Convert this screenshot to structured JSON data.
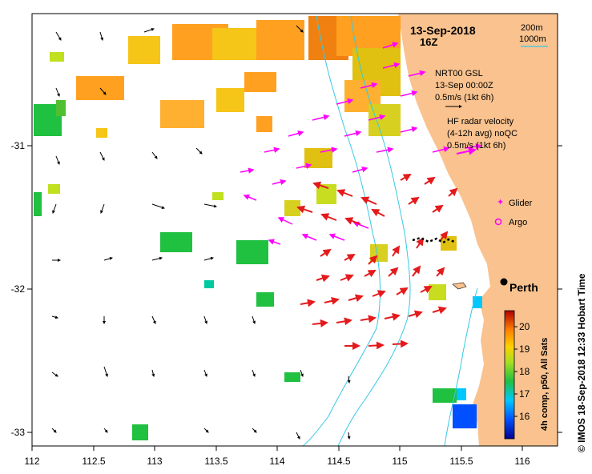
{
  "title": {
    "date": "13-Sep-2018",
    "hour": "16Z"
  },
  "scale": {
    "contour_1": "200m",
    "contour_2": "1000m"
  },
  "legend": {
    "nrt_line1": "NRT00 GSL",
    "nrt_line2": "13-Sep 00:00Z",
    "nrt_line3": "0.5m/s (1kt 6h)",
    "hf_line1": "HF radar velocity",
    "hf_line2": "(4-12h avg) noQC",
    "hf_line3": "0.5m/s (1kt 6h)",
    "glider": "Glider",
    "argo": "Argo"
  },
  "city": "Perth",
  "x_ticks": [
    "112",
    "112.5",
    "113",
    "113.5",
    "114",
    "114.5",
    "115",
    "115.5",
    "116"
  ],
  "y_ticks": [
    "-31",
    "-32",
    "-33"
  ],
  "colorbar": {
    "ticks": [
      "20",
      "19",
      "18",
      "17",
      "16"
    ],
    "label": "4h comp, p50, All Sats"
  },
  "credit": "© IMOS 18-Sep-2018 12:33 Hobart Time",
  "colors": {
    "land": "#f9c28e",
    "hf_arrow": "#e41a1c",
    "nrt_arrow": "#ff00ff",
    "contour": "#35c9e6"
  }
}
